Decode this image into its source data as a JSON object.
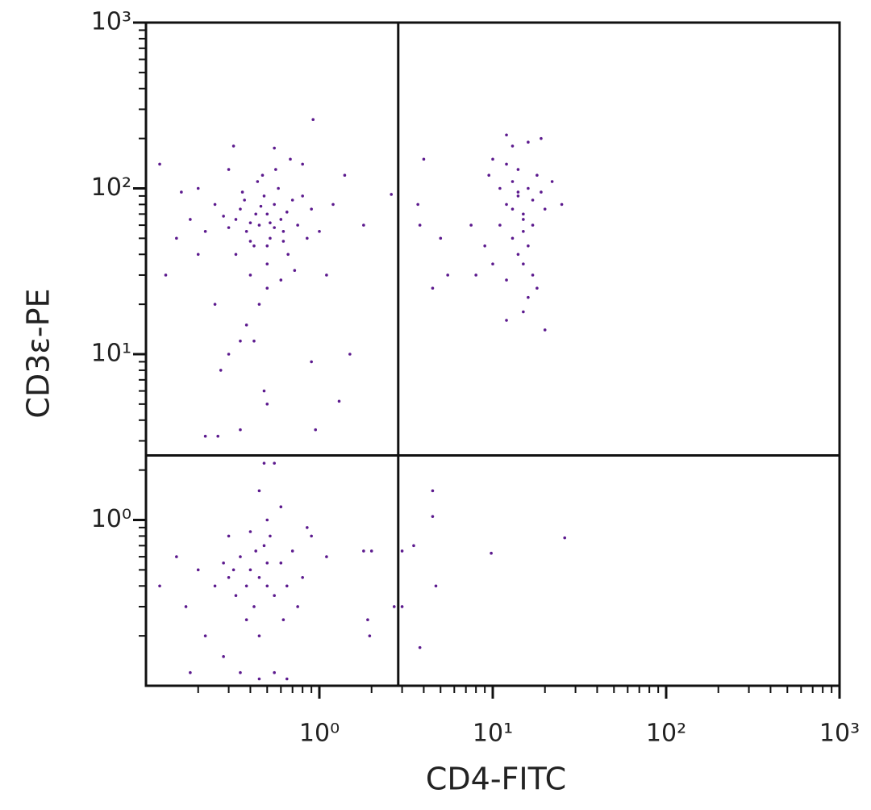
{
  "chart_data": {
    "type": "scatter",
    "xlabel": "CD4-FITC",
    "ylabel": "CD3ε-PE",
    "xscale": "log",
    "yscale": "log",
    "xlim": [
      0.1,
      1000
    ],
    "ylim": [
      0.1,
      1000
    ],
    "xticks": [
      {
        "value": 1,
        "label": "10⁰"
      },
      {
        "value": 10,
        "label": "10¹"
      },
      {
        "value": 100,
        "label": "10²"
      },
      {
        "value": 1000,
        "label": "10³"
      }
    ],
    "yticks": [
      {
        "value": 1,
        "label": "10⁰"
      },
      {
        "value": 10,
        "label": "10¹"
      },
      {
        "value": 100,
        "label": "10²"
      },
      {
        "value": 1000,
        "label": "10³"
      }
    ],
    "xminorticks": [
      0.2,
      0.3,
      0.4,
      0.5,
      0.6,
      0.7,
      0.8,
      0.9,
      2,
      3,
      4,
      5,
      6,
      7,
      8,
      9,
      20,
      30,
      40,
      50,
      60,
      70,
      80,
      90,
      200,
      300,
      400,
      500,
      600,
      700,
      800,
      900
    ],
    "yminorticks": [
      0.2,
      0.3,
      0.4,
      0.5,
      0.6,
      0.7,
      0.8,
      0.9,
      2,
      3,
      4,
      5,
      6,
      7,
      8,
      9,
      20,
      30,
      40,
      50,
      60,
      70,
      80,
      90,
      200,
      300,
      400,
      500,
      600,
      700,
      800,
      900
    ],
    "quadrant_x": 2.85,
    "quadrant_y": 2.45,
    "color": "#5c1a8e",
    "x": [
      0.45,
      0.5,
      0.38,
      0.55,
      0.42,
      0.6,
      0.35,
      0.48,
      0.52,
      0.4,
      0.3,
      0.65,
      0.7,
      0.33,
      0.58,
      0.44,
      0.28,
      0.62,
      0.5,
      0.4,
      0.75,
      0.25,
      0.22,
      0.8,
      0.47,
      0.36,
      0.56,
      0.3,
      0.9,
      0.2,
      0.18,
      0.85,
      0.66,
      0.5,
      0.45,
      0.38,
      0.42,
      0.3,
      0.27,
      0.48,
      0.5,
      0.22,
      0.26,
      0.35,
      0.95,
      1.3,
      1.5,
      1.1,
      1.0,
      1.2,
      0.15,
      0.13,
      0.12,
      0.16,
      0.32,
      0.55,
      0.68,
      0.8,
      1.4,
      0.92,
      0.2,
      0.25,
      0.6,
      0.72,
      0.55,
      0.43,
      0.37,
      0.5,
      0.62,
      0.4,
      0.33,
      0.46,
      0.52,
      1.8,
      2.6,
      0.35,
      0.9,
      14,
      12,
      16,
      15,
      13,
      18,
      11,
      17,
      14,
      15,
      12,
      16,
      13,
      19,
      11,
      20,
      14,
      15,
      17,
      12,
      18,
      16,
      15,
      12,
      20,
      10,
      9,
      8,
      7.5,
      9.5,
      10,
      22,
      25,
      13,
      16,
      19,
      12,
      5,
      5.5,
      4,
      3.7,
      4.5,
      3.8,
      15,
      14,
      13,
      17,
      0.45,
      0.4,
      0.5,
      0.35,
      0.55,
      0.3,
      0.6,
      0.42,
      0.48,
      0.38,
      0.52,
      0.28,
      0.65,
      0.33,
      0.45,
      0.25,
      0.7,
      0.4,
      0.5,
      0.45,
      0.55,
      0.48,
      0.6,
      0.3,
      0.2,
      0.15,
      0.12,
      0.17,
      0.22,
      0.28,
      0.35,
      0.45,
      0.55,
      0.65,
      0.18,
      0.75,
      0.8,
      0.9,
      1.1,
      0.85,
      0.62,
      0.38,
      0.5,
      0.43,
      0.32,
      1.8,
      2,
      1.9,
      1.95,
      2.7,
      3,
      3,
      3.5,
      4.5,
      4.5,
      4.7,
      3.8,
      9.8,
      26
    ],
    "values": [
      60,
      70,
      55,
      80,
      45,
      65,
      75,
      90,
      50,
      62,
      58,
      72,
      85,
      40,
      100,
      110,
      68,
      48,
      35,
      30,
      60,
      80,
      55,
      90,
      120,
      95,
      130,
      130,
      75,
      100,
      65,
      50,
      40,
      25,
      20,
      15,
      12,
      10,
      8,
      6,
      5,
      3.2,
      3.2,
      3.5,
      3.5,
      5.2,
      10,
      30,
      55,
      80,
      50,
      30,
      140,
      95,
      180,
      175,
      150,
      140,
      120,
      260,
      40,
      20,
      28,
      32,
      58,
      70,
      85,
      45,
      55,
      48,
      65,
      78,
      62,
      60,
      92,
      12,
      9,
      90,
      80,
      100,
      70,
      110,
      120,
      60,
      85,
      130,
      55,
      140,
      45,
      50,
      95,
      100,
      75,
      40,
      35,
      30,
      28,
      25,
      22,
      18,
      16,
      14,
      35,
      45,
      30,
      60,
      120,
      150,
      110,
      80,
      180,
      190,
      200,
      210,
      50,
      30,
      150,
      80,
      25,
      60,
      65,
      95,
      75,
      60,
      0.45,
      0.5,
      0.4,
      0.6,
      0.35,
      0.45,
      0.55,
      0.3,
      0.7,
      0.25,
      0.8,
      0.55,
      0.4,
      0.35,
      0.2,
      0.4,
      0.65,
      0.85,
      1.0,
      1.5,
      2.2,
      2.2,
      1.2,
      0.8,
      0.5,
      0.6,
      0.4,
      0.3,
      0.2,
      0.15,
      0.12,
      0.11,
      0.12,
      0.11,
      0.12,
      0.3,
      0.45,
      0.8,
      0.6,
      0.9,
      0.25,
      0.4,
      0.55,
      0.65,
      0.5,
      0.65,
      0.65,
      0.25,
      0.2,
      0.3,
      0.65,
      0.3,
      0.7,
      1.5,
      1.05,
      0.4,
      0.17,
      0.63,
      0.78
    ]
  }
}
